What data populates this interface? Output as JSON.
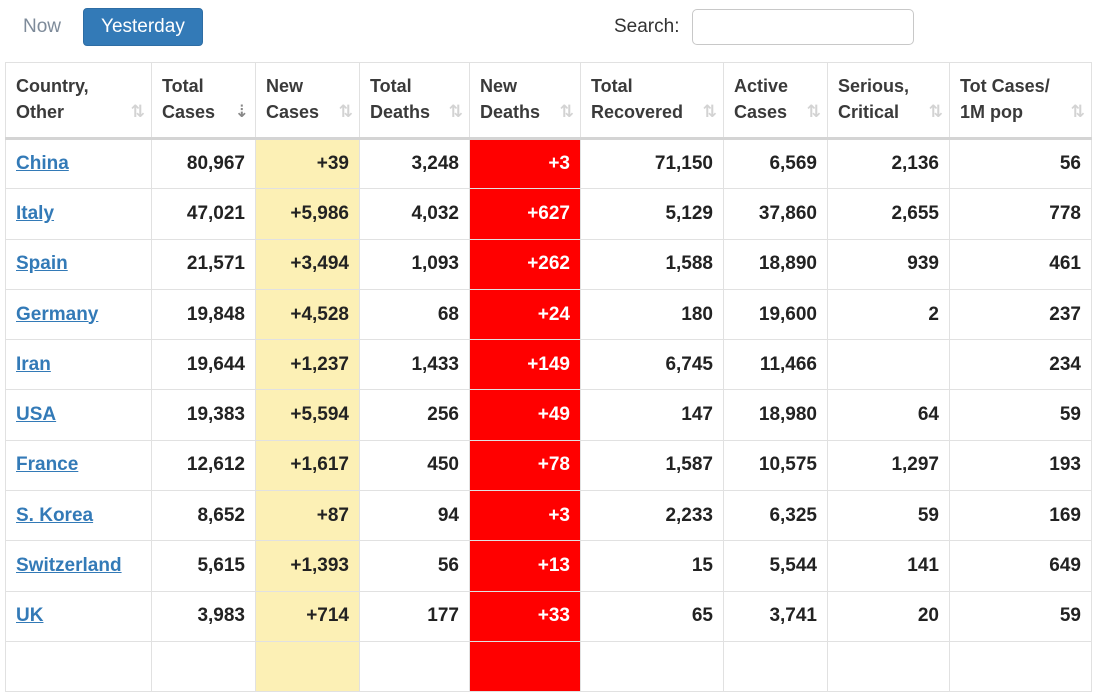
{
  "tabs": {
    "now": "Now",
    "yesterday": "Yesterday"
  },
  "search": {
    "label": "Search:",
    "value": "",
    "placeholder": ""
  },
  "table": {
    "headers": [
      {
        "line1": "Country,",
        "line2": "Other"
      },
      {
        "line1": "Total",
        "line2": "Cases"
      },
      {
        "line1": "New",
        "line2": "Cases"
      },
      {
        "line1": "Total",
        "line2": "Deaths"
      },
      {
        "line1": "New",
        "line2": "Deaths"
      },
      {
        "line1": "Total",
        "line2": "Recovered"
      },
      {
        "line1": "Active",
        "line2": "Cases"
      },
      {
        "line1": "Serious,",
        "line2": "Critical"
      },
      {
        "line1": "Tot Cases/",
        "line2": "1M pop"
      }
    ],
    "sort_icons": {
      "default": "⇅",
      "sorted_desc": "⇣"
    },
    "rows": [
      {
        "country": "China",
        "total_cases": "80,967",
        "new_cases": "+39",
        "total_deaths": "3,248",
        "new_deaths": "+3",
        "total_recovered": "71,150",
        "active_cases": "6,569",
        "serious_critical": "2,136",
        "tot_cases_per_1m": "56"
      },
      {
        "country": "Italy",
        "total_cases": "47,021",
        "new_cases": "+5,986",
        "total_deaths": "4,032",
        "new_deaths": "+627",
        "total_recovered": "5,129",
        "active_cases": "37,860",
        "serious_critical": "2,655",
        "tot_cases_per_1m": "778"
      },
      {
        "country": "Spain",
        "total_cases": "21,571",
        "new_cases": "+3,494",
        "total_deaths": "1,093",
        "new_deaths": "+262",
        "total_recovered": "1,588",
        "active_cases": "18,890",
        "serious_critical": "939",
        "tot_cases_per_1m": "461"
      },
      {
        "country": "Germany",
        "total_cases": "19,848",
        "new_cases": "+4,528",
        "total_deaths": "68",
        "new_deaths": "+24",
        "total_recovered": "180",
        "active_cases": "19,600",
        "serious_critical": "2",
        "tot_cases_per_1m": "237"
      },
      {
        "country": "Iran",
        "total_cases": "19,644",
        "new_cases": "+1,237",
        "total_deaths": "1,433",
        "new_deaths": "+149",
        "total_recovered": "6,745",
        "active_cases": "11,466",
        "serious_critical": "",
        "tot_cases_per_1m": "234"
      },
      {
        "country": "USA",
        "total_cases": "19,383",
        "new_cases": "+5,594",
        "total_deaths": "256",
        "new_deaths": "+49",
        "total_recovered": "147",
        "active_cases": "18,980",
        "serious_critical": "64",
        "tot_cases_per_1m": "59"
      },
      {
        "country": "France",
        "total_cases": "12,612",
        "new_cases": "+1,617",
        "total_deaths": "450",
        "new_deaths": "+78",
        "total_recovered": "1,587",
        "active_cases": "10,575",
        "serious_critical": "1,297",
        "tot_cases_per_1m": "193"
      },
      {
        "country": "S. Korea",
        "total_cases": "8,652",
        "new_cases": "+87",
        "total_deaths": "94",
        "new_deaths": "+3",
        "total_recovered": "2,233",
        "active_cases": "6,325",
        "serious_critical": "59",
        "tot_cases_per_1m": "169"
      },
      {
        "country": "Switzerland",
        "total_cases": "5,615",
        "new_cases": "+1,393",
        "total_deaths": "56",
        "new_deaths": "+13",
        "total_recovered": "15",
        "active_cases": "5,544",
        "serious_critical": "141",
        "tot_cases_per_1m": "649"
      },
      {
        "country": "UK",
        "total_cases": "3,983",
        "new_cases": "+714",
        "total_deaths": "177",
        "new_deaths": "+33",
        "total_recovered": "65",
        "active_cases": "3,741",
        "serious_critical": "20",
        "tot_cases_per_1m": "59"
      },
      {
        "country": "",
        "total_cases": "",
        "new_cases": "",
        "total_deaths": "",
        "new_deaths": "",
        "total_recovered": "",
        "active_cases": "",
        "serious_critical": "",
        "tot_cases_per_1m": ""
      }
    ]
  },
  "colors": {
    "active_tab_bg": "#337ab7",
    "link": "#337ab7",
    "new_cases_bg": "#fcf0b5",
    "new_deaths_bg": "#ff0000",
    "new_deaths_text": "#ffffff"
  }
}
